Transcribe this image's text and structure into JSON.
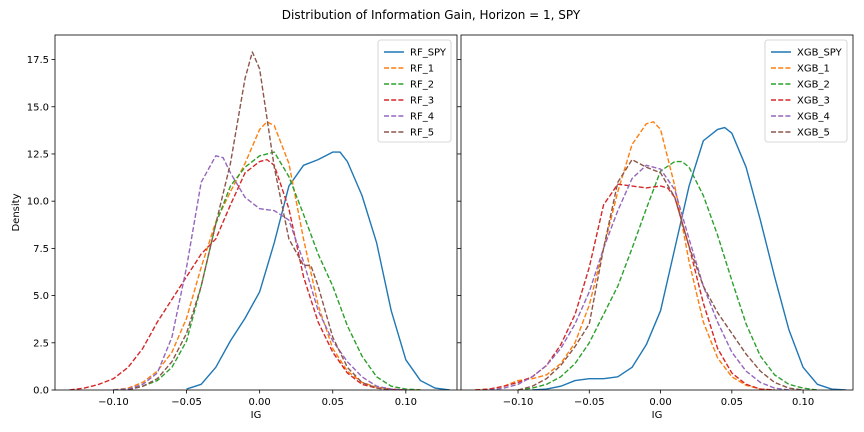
{
  "figure": {
    "title": "Distribution of Information Gain, Horizon = 1, SPY"
  },
  "chart_data": [
    {
      "type": "line",
      "panel": "left",
      "xlabel": "IG",
      "ylabel": "Density",
      "xlim": [
        -0.14,
        0.135
      ],
      "ylim": [
        0,
        18.8
      ],
      "xticks": [
        -0.1,
        -0.05,
        0.0,
        0.05,
        0.1
      ],
      "xtick_labels": [
        "−0.10",
        "−0.05",
        "0.00",
        "0.05",
        "0.10"
      ],
      "yticks": [
        0.0,
        2.5,
        5.0,
        7.5,
        10.0,
        12.5,
        15.0,
        17.5
      ],
      "ytick_labels": [
        "0.0",
        "2.5",
        "5.0",
        "7.5",
        "10.0",
        "12.5",
        "15.0",
        "17.5"
      ],
      "legend_position": "top-right",
      "series": [
        {
          "name": "RF_SPY",
          "color": "#1f77b4",
          "dashed": false,
          "x": [
            -0.05,
            -0.04,
            -0.03,
            -0.02,
            -0.01,
            0.0,
            0.01,
            0.02,
            0.03,
            0.04,
            0.05,
            0.055,
            0.06,
            0.07,
            0.08,
            0.09,
            0.1,
            0.11,
            0.12,
            0.13
          ],
          "y": [
            0.05,
            0.3,
            1.2,
            2.6,
            3.8,
            5.2,
            7.8,
            10.8,
            11.9,
            12.2,
            12.6,
            12.6,
            12.1,
            10.3,
            7.8,
            4.2,
            1.6,
            0.5,
            0.1,
            0.0
          ]
        },
        {
          "name": "RF_1",
          "color": "#ff7f0e",
          "dashed": true,
          "x": [
            -0.1,
            -0.09,
            -0.08,
            -0.07,
            -0.06,
            -0.05,
            -0.04,
            -0.03,
            -0.02,
            -0.01,
            0.0,
            0.005,
            0.01,
            0.02,
            0.03,
            0.04,
            0.05,
            0.06,
            0.07,
            0.08,
            0.09,
            0.1,
            0.11
          ],
          "y": [
            0.0,
            0.1,
            0.4,
            1.0,
            2.0,
            3.8,
            6.5,
            8.9,
            10.5,
            12.0,
            13.8,
            14.2,
            14.0,
            12.0,
            8.0,
            4.5,
            2.2,
            1.0,
            0.4,
            0.15,
            0.05,
            0.0,
            0.0
          ]
        },
        {
          "name": "RF_2",
          "color": "#2ca02c",
          "dashed": true,
          "x": [
            -0.1,
            -0.09,
            -0.08,
            -0.07,
            -0.06,
            -0.05,
            -0.04,
            -0.03,
            -0.02,
            -0.01,
            0.0,
            0.01,
            0.02,
            0.03,
            0.04,
            0.05,
            0.06,
            0.07,
            0.08,
            0.09,
            0.1,
            0.11
          ],
          "y": [
            0.0,
            0.05,
            0.2,
            0.5,
            1.2,
            2.6,
            5.5,
            8.8,
            10.8,
            11.8,
            12.4,
            12.6,
            11.3,
            9.3,
            7.2,
            5.5,
            3.4,
            1.8,
            0.7,
            0.2,
            0.05,
            0.0
          ]
        },
        {
          "name": "RF_3",
          "color": "#d62728",
          "dashed": true,
          "x": [
            -0.13,
            -0.12,
            -0.11,
            -0.1,
            -0.09,
            -0.08,
            -0.07,
            -0.06,
            -0.05,
            -0.04,
            -0.03,
            -0.02,
            -0.01,
            0.0,
            0.005,
            0.01,
            0.02,
            0.03,
            0.04,
            0.05,
            0.06,
            0.07,
            0.08,
            0.09,
            0.1
          ],
          "y": [
            0.0,
            0.1,
            0.3,
            0.6,
            1.2,
            2.2,
            3.6,
            4.8,
            6.0,
            7.2,
            8.0,
            9.8,
            11.5,
            12.1,
            12.2,
            11.9,
            9.6,
            6.0,
            3.6,
            2.0,
            0.9,
            0.3,
            0.1,
            0.03,
            0.0
          ]
        },
        {
          "name": "RF_4",
          "color": "#9467bd",
          "dashed": true,
          "x": [
            -0.1,
            -0.09,
            -0.08,
            -0.07,
            -0.06,
            -0.05,
            -0.04,
            -0.03,
            -0.025,
            -0.02,
            -0.01,
            0.0,
            0.01,
            0.02,
            0.03,
            0.04,
            0.05,
            0.06,
            0.07,
            0.08,
            0.09,
            0.1
          ],
          "y": [
            0.0,
            0.05,
            0.3,
            0.9,
            2.8,
            6.5,
            11.0,
            12.4,
            12.3,
            11.5,
            10.2,
            9.6,
            9.5,
            9.0,
            6.8,
            4.2,
            2.6,
            1.5,
            0.7,
            0.2,
            0.05,
            0.0
          ]
        },
        {
          "name": "RF_5",
          "color": "#8c564b",
          "dashed": true,
          "x": [
            -0.09,
            -0.08,
            -0.07,
            -0.06,
            -0.05,
            -0.04,
            -0.03,
            -0.02,
            -0.01,
            -0.005,
            0.0,
            0.01,
            0.02,
            0.03,
            0.035,
            0.04,
            0.05,
            0.06,
            0.07,
            0.08,
            0.09
          ],
          "y": [
            0.0,
            0.2,
            0.6,
            1.5,
            3.0,
            5.5,
            8.8,
            12.0,
            16.5,
            17.9,
            17.0,
            11.8,
            8.0,
            6.6,
            6.6,
            5.5,
            2.8,
            1.2,
            0.4,
            0.1,
            0.0
          ]
        }
      ]
    },
    {
      "type": "line",
      "panel": "right",
      "xlabel": "IG",
      "ylabel": "",
      "xlim": [
        -0.14,
        0.135
      ],
      "ylim": [
        0,
        18.8
      ],
      "xticks": [
        -0.1,
        -0.05,
        0.0,
        0.05,
        0.1
      ],
      "xtick_labels": [
        "−0.10",
        "−0.05",
        "0.00",
        "0.05",
        "0.10"
      ],
      "legend_position": "top-right",
      "series": [
        {
          "name": "XGB_SPY",
          "color": "#1f77b4",
          "dashed": false,
          "x": [
            -0.09,
            -0.08,
            -0.07,
            -0.06,
            -0.05,
            -0.04,
            -0.03,
            -0.02,
            -0.01,
            0.0,
            0.01,
            0.02,
            0.03,
            0.04,
            0.045,
            0.05,
            0.06,
            0.07,
            0.08,
            0.09,
            0.1,
            0.11,
            0.12,
            0.13
          ],
          "y": [
            0.0,
            0.05,
            0.2,
            0.5,
            0.6,
            0.6,
            0.7,
            1.2,
            2.4,
            4.2,
            7.5,
            10.8,
            13.2,
            13.8,
            13.9,
            13.6,
            11.8,
            9.0,
            6.0,
            3.2,
            1.2,
            0.3,
            0.05,
            0.0
          ]
        },
        {
          "name": "XGB_1",
          "color": "#ff7f0e",
          "dashed": true,
          "x": [
            -0.13,
            -0.12,
            -0.11,
            -0.1,
            -0.09,
            -0.08,
            -0.07,
            -0.06,
            -0.05,
            -0.04,
            -0.03,
            -0.02,
            -0.01,
            -0.005,
            0.0,
            0.01,
            0.02,
            0.03,
            0.04,
            0.05,
            0.06,
            0.07,
            0.08
          ],
          "y": [
            0.0,
            0.05,
            0.2,
            0.5,
            0.6,
            0.8,
            1.4,
            2.5,
            4.5,
            7.5,
            10.5,
            13.0,
            14.1,
            14.2,
            13.8,
            10.8,
            6.8,
            3.6,
            1.7,
            0.7,
            0.25,
            0.05,
            0.0
          ]
        },
        {
          "name": "XGB_2",
          "color": "#2ca02c",
          "dashed": true,
          "x": [
            -0.1,
            -0.09,
            -0.08,
            -0.07,
            -0.06,
            -0.05,
            -0.04,
            -0.03,
            -0.02,
            -0.01,
            0.0,
            0.01,
            0.015,
            0.02,
            0.03,
            0.04,
            0.05,
            0.06,
            0.07,
            0.08,
            0.09,
            0.1,
            0.11
          ],
          "y": [
            0.0,
            0.1,
            0.3,
            0.7,
            1.4,
            2.5,
            4.0,
            5.5,
            7.5,
            9.6,
            11.6,
            12.1,
            12.1,
            11.8,
            10.3,
            8.2,
            5.8,
            3.5,
            1.8,
            0.8,
            0.3,
            0.1,
            0.0
          ]
        },
        {
          "name": "XGB_3",
          "color": "#d62728",
          "dashed": true,
          "x": [
            -0.13,
            -0.12,
            -0.11,
            -0.1,
            -0.09,
            -0.08,
            -0.07,
            -0.06,
            -0.05,
            -0.04,
            -0.03,
            -0.02,
            -0.01,
            0.0,
            0.005,
            0.01,
            0.02,
            0.03,
            0.04,
            0.05,
            0.06,
            0.07,
            0.08
          ],
          "y": [
            0.0,
            0.05,
            0.2,
            0.4,
            0.7,
            1.3,
            2.4,
            4.0,
            6.5,
            9.8,
            10.9,
            10.8,
            10.7,
            10.8,
            10.7,
            10.2,
            7.6,
            4.6,
            2.2,
            0.9,
            0.3,
            0.05,
            0.0
          ]
        },
        {
          "name": "XGB_4",
          "color": "#9467bd",
          "dashed": true,
          "x": [
            -0.12,
            -0.11,
            -0.1,
            -0.09,
            -0.08,
            -0.07,
            -0.06,
            -0.05,
            -0.04,
            -0.03,
            -0.02,
            -0.01,
            0.0,
            0.01,
            0.02,
            0.03,
            0.04,
            0.05,
            0.06,
            0.07,
            0.08,
            0.09
          ],
          "y": [
            0.0,
            0.1,
            0.3,
            0.7,
            1.3,
            2.2,
            3.5,
            5.2,
            7.5,
            9.5,
            11.2,
            11.9,
            11.7,
            10.6,
            8.0,
            5.5,
            3.6,
            2.0,
            1.0,
            0.4,
            0.1,
            0.0
          ]
        },
        {
          "name": "XGB_5",
          "color": "#8c564b",
          "dashed": true,
          "x": [
            -0.1,
            -0.09,
            -0.08,
            -0.07,
            -0.06,
            -0.05,
            -0.04,
            -0.03,
            -0.02,
            -0.01,
            0.0,
            0.01,
            0.02,
            0.03,
            0.04,
            0.05,
            0.06,
            0.07,
            0.08,
            0.09,
            0.1
          ],
          "y": [
            0.0,
            0.2,
            0.6,
            1.3,
            2.3,
            3.5,
            7.5,
            11.0,
            12.2,
            11.8,
            11.5,
            10.2,
            7.6,
            5.5,
            4.1,
            3.0,
            1.9,
            1.0,
            0.4,
            0.1,
            0.0
          ]
        }
      ]
    }
  ]
}
